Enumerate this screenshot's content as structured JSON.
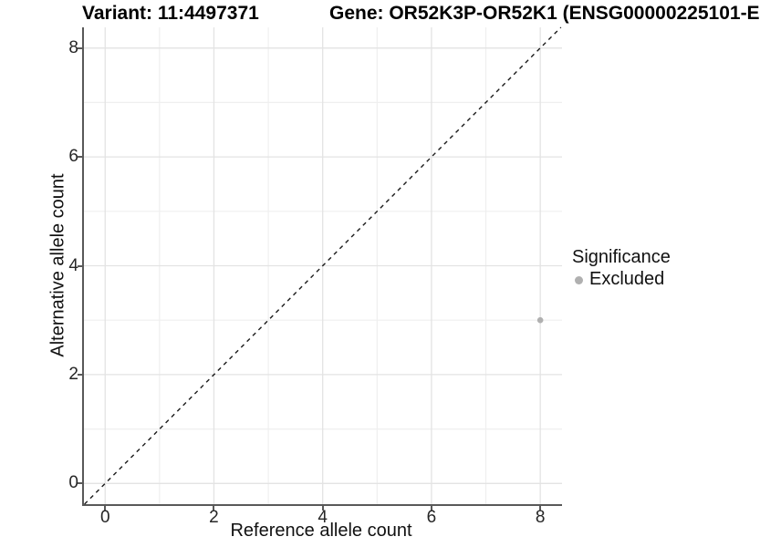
{
  "titles": {
    "variant": "Variant: 11:4497371",
    "gene": "Gene: OR52K3P-OR52K1 (ENSG00000225101-E"
  },
  "chart_data": {
    "type": "scatter",
    "title_left": "Variant: 11:4497371",
    "title_right": "Gene: OR52K3P-OR52K1 (ENSG00000225101-E",
    "xlabel": "Reference allele count",
    "ylabel": "Alternative allele count",
    "xlim": [
      -0.39,
      8.4
    ],
    "ylim": [
      -0.38,
      8.38
    ],
    "x_major_ticks": [
      0,
      2,
      4,
      6,
      8
    ],
    "y_major_ticks": [
      0,
      2,
      4,
      6,
      8
    ],
    "x_minor_gridlines": [
      1,
      3,
      5,
      7
    ],
    "y_minor_gridlines": [
      1,
      3,
      5,
      7
    ],
    "grid": "on",
    "identity_line": {
      "equation": "y = x",
      "style": "dashed",
      "color": "#1a1a1a"
    },
    "series": [
      {
        "name": "Excluded",
        "color": "#b0b0b0",
        "points": [
          {
            "x": 8,
            "y": 3
          }
        ]
      }
    ],
    "legend": {
      "title": "Significance",
      "position": "right",
      "items": [
        {
          "label": "Excluded",
          "color": "#b0b0b0",
          "marker": "dot"
        }
      ]
    }
  },
  "colors": {
    "background": "#ffffff",
    "grid_major": "#e3e3e3",
    "grid_minor": "#efefef",
    "axis_line": "#595959",
    "tick_label": "#262626",
    "point": "#b0b0b0"
  }
}
